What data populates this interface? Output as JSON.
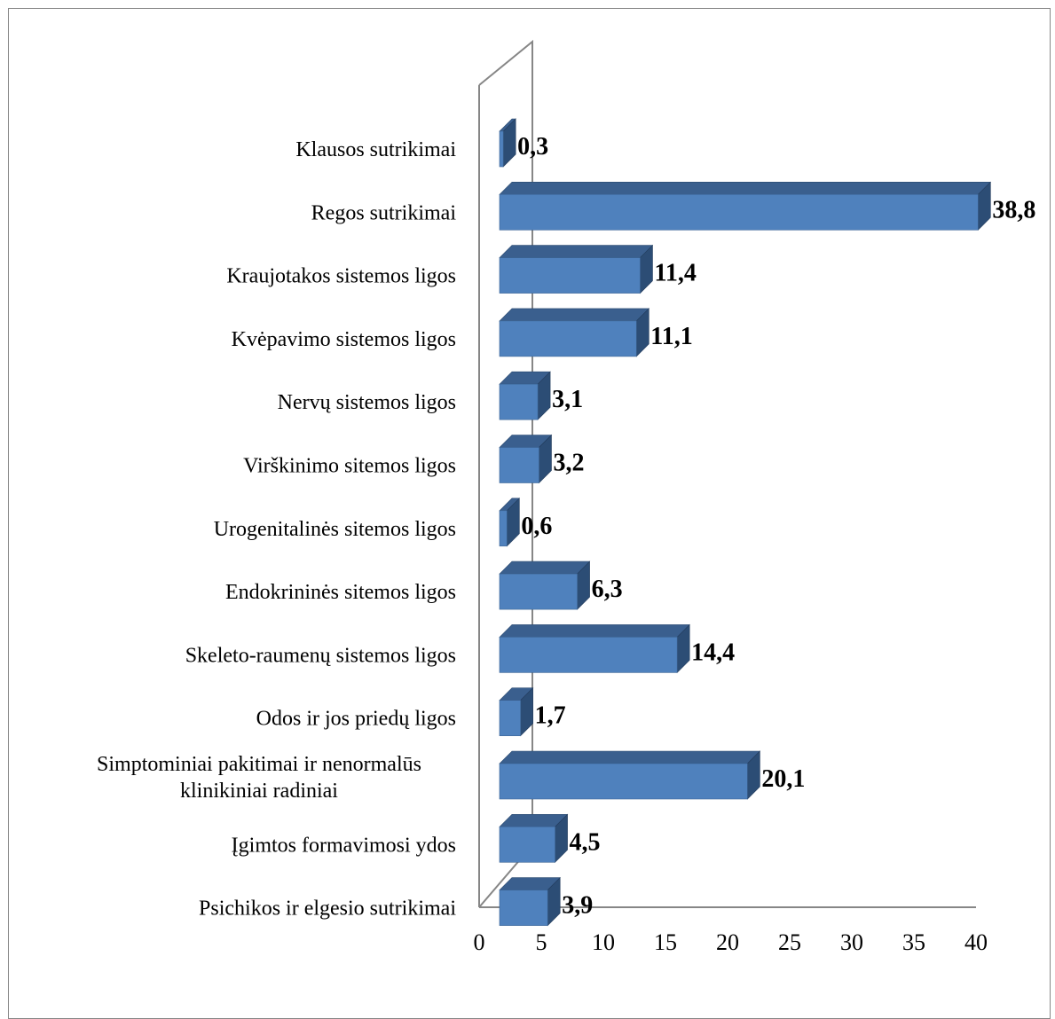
{
  "colors": {
    "bar_front": "#4F81BD",
    "bar_top": "#3A5F8E",
    "bar_side": "#2C4D75",
    "axis": "#868686"
  },
  "chart_data": {
    "type": "bar",
    "orientation": "horizontal",
    "style": "3d-clustered",
    "title": "",
    "xlabel": "",
    "ylabel": "",
    "xlim": [
      0,
      40
    ],
    "xticks": [
      0,
      5,
      10,
      15,
      20,
      25,
      30,
      35,
      40
    ],
    "grid": false,
    "legend": "none",
    "categories": [
      "Klausos sutrikimai",
      "Regos sutrikimai",
      "Kraujotakos sistemos ligos",
      "Kvėpavimo sistemos ligos",
      "Nervų sistemos ligos",
      "Virškinimo sitemos ligos",
      "Urogenitalinės sitemos ligos",
      "Endokrininės sitemos ligos",
      "Skeleto-raumenų sistemos ligos",
      "Odos ir jos priedų ligos",
      "Simptominiai pakitimai ir nenormalūs klinikiniai radiniai",
      "Įgimtos formavimosi ydos",
      "Psichikos ir elgesio sutrikimai"
    ],
    "category_lines": [
      [
        "Klausos sutrikimai"
      ],
      [
        "Regos sutrikimai"
      ],
      [
        "Kraujotakos sistemos ligos"
      ],
      [
        "Kvėpavimo sistemos ligos"
      ],
      [
        "Nervų sistemos ligos"
      ],
      [
        "Virškinimo sitemos ligos"
      ],
      [
        "Urogenitalinės sitemos ligos"
      ],
      [
        "Endokrininės sitemos ligos"
      ],
      [
        "Skeleto-raumenų sistemos ligos"
      ],
      [
        "Odos ir jos priedų ligos"
      ],
      [
        "Simptominiai pakitimai ir nenormalūs",
        "klinikiniai radiniai"
      ],
      [
        "Įgimtos formavimosi ydos"
      ],
      [
        "Psichikos ir elgesio sutrikimai"
      ]
    ],
    "values": [
      0.3,
      38.8,
      11.4,
      11.1,
      3.1,
      3.2,
      0.6,
      6.3,
      14.4,
      1.7,
      20.1,
      4.5,
      3.9
    ],
    "data_labels": [
      "0,3",
      "38,8",
      "11,4",
      "11,1",
      "3,1",
      "3,2",
      "0,6",
      "6,3",
      "14,4",
      "1,7",
      "20,1",
      "4,5",
      "3,9"
    ]
  }
}
